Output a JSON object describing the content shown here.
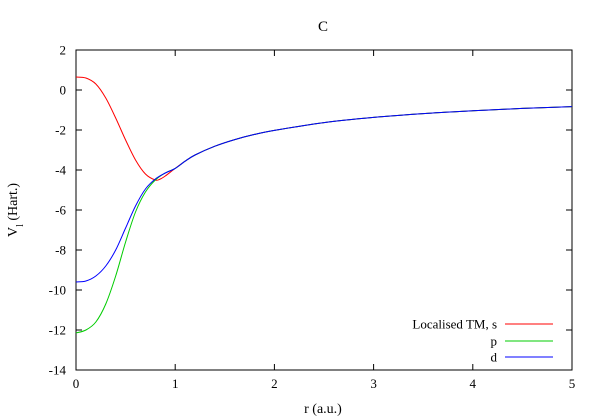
{
  "chart_data": {
    "type": "line",
    "title": "C",
    "xlabel": "r (a.u.)",
    "ylabel_main": "V",
    "ylabel_sub": "l",
    "ylabel_rest": " (Hart.)",
    "xlim": [
      0,
      5
    ],
    "ylim": [
      -14,
      2
    ],
    "xticks": [
      0,
      1,
      2,
      3,
      4,
      5
    ],
    "yticks": [
      -14,
      -12,
      -10,
      -8,
      -6,
      -4,
      -2,
      0,
      2
    ],
    "grid": false,
    "legend_position": "bottom-right",
    "series": [
      {
        "name": "Localised TM, s",
        "color": "#ff0000",
        "x": [
          0,
          0.1,
          0.2,
          0.3,
          0.4,
          0.5,
          0.6,
          0.7,
          0.8,
          0.85,
          0.9,
          1.0,
          1.1,
          1.2,
          1.4,
          1.6,
          1.8,
          2.0,
          2.5,
          3.0,
          3.5,
          4.0,
          4.5,
          5.0
        ],
        "y": [
          0.65,
          0.6,
          0.3,
          -0.4,
          -1.4,
          -2.5,
          -3.5,
          -4.2,
          -4.5,
          -4.45,
          -4.3,
          -3.92,
          -3.56,
          -3.25,
          -2.81,
          -2.48,
          -2.22,
          -2.02,
          -1.63,
          -1.37,
          -1.18,
          -1.04,
          -0.92,
          -0.83
        ]
      },
      {
        "name": "p",
        "color": "#00cc00",
        "x": [
          0,
          0.1,
          0.2,
          0.3,
          0.4,
          0.5,
          0.6,
          0.7,
          0.8,
          0.9,
          1.0,
          1.1,
          1.2,
          1.4,
          1.6,
          1.8,
          2.0,
          2.5,
          3.0,
          3.5,
          4.0,
          4.5,
          5.0
        ],
        "y": [
          -12.15,
          -12.0,
          -11.6,
          -10.7,
          -9.3,
          -7.6,
          -6.1,
          -5.1,
          -4.5,
          -4.15,
          -3.92,
          -3.56,
          -3.25,
          -2.81,
          -2.48,
          -2.22,
          -2.02,
          -1.63,
          -1.37,
          -1.18,
          -1.04,
          -0.92,
          -0.83
        ]
      },
      {
        "name": "d",
        "color": "#0000ff",
        "x": [
          0,
          0.1,
          0.2,
          0.3,
          0.4,
          0.5,
          0.6,
          0.7,
          0.8,
          0.9,
          1.0,
          1.1,
          1.2,
          1.4,
          1.6,
          1.8,
          2.0,
          2.5,
          3.0,
          3.5,
          4.0,
          4.5,
          5.0
        ],
        "y": [
          -9.6,
          -9.55,
          -9.3,
          -8.8,
          -8.0,
          -6.9,
          -5.8,
          -4.95,
          -4.45,
          -4.15,
          -3.92,
          -3.56,
          -3.25,
          -2.81,
          -2.48,
          -2.22,
          -2.02,
          -1.63,
          -1.37,
          -1.18,
          -1.04,
          -0.92,
          -0.83
        ]
      }
    ]
  }
}
